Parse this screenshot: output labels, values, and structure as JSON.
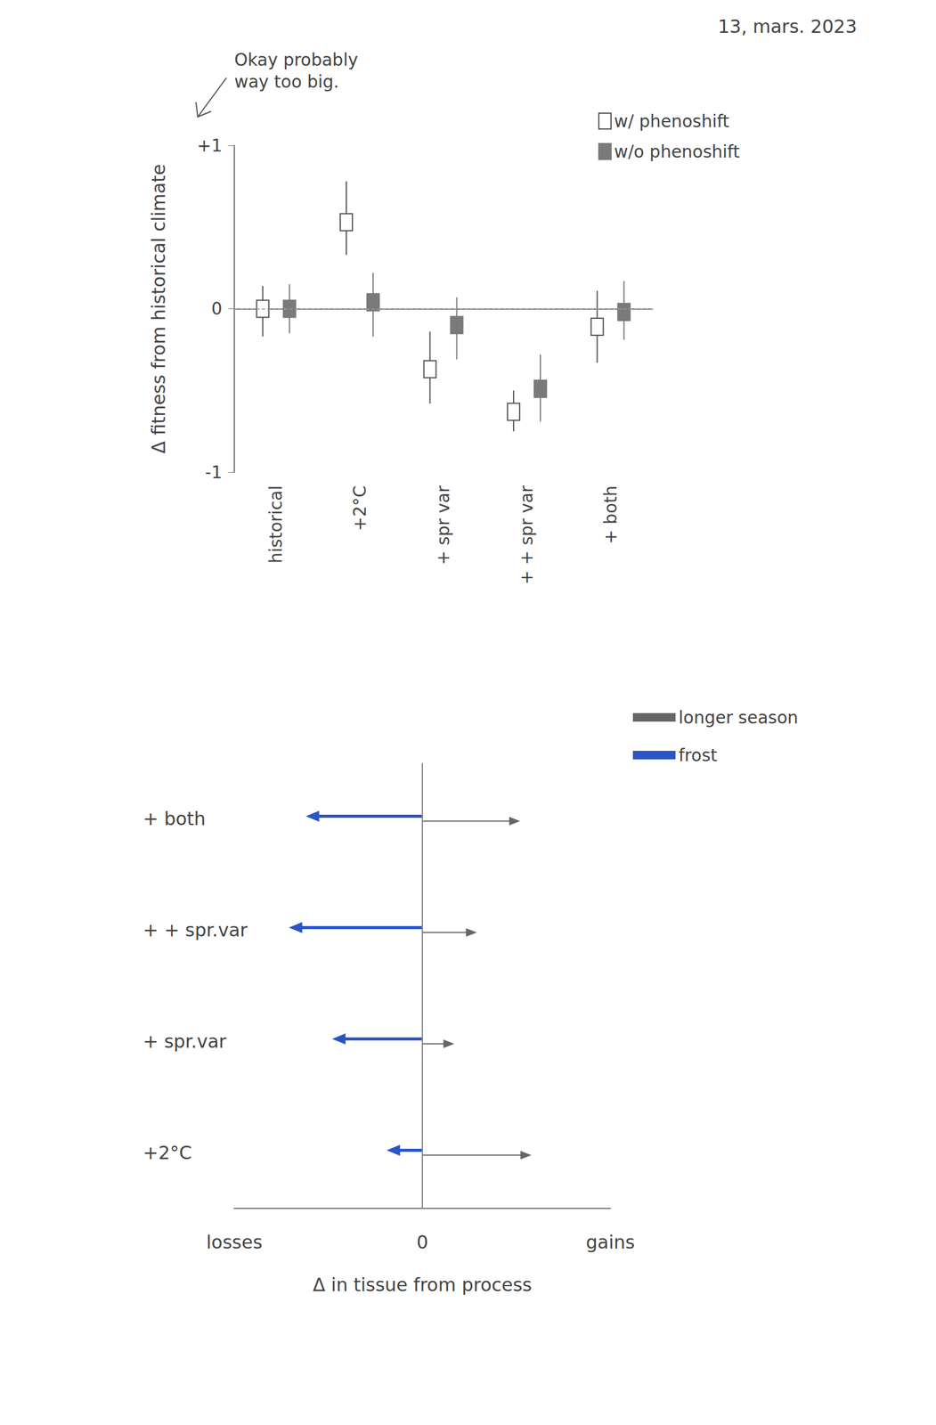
{
  "chart_data": [
    {
      "type": "errorbar",
      "annotations": [
        "13, mars. 2023",
        "Okay probably way too big."
      ],
      "y_label": "Δ fitness from historical climate",
      "categories": [
        "historical",
        "+2°C",
        "+ spr var",
        "+ + spr var",
        "+ both"
      ],
      "series": [
        {
          "name": "w/ phenoshift",
          "color": "#555555",
          "marker": "square-open",
          "values": [
            0,
            0.53,
            -0.37,
            -0.63,
            -0.11
          ],
          "low": [
            -0.17,
            0.33,
            -0.58,
            -0.75,
            -0.33
          ],
          "high": [
            0.14,
            0.78,
            -0.14,
            -0.5,
            0.11
          ]
        },
        {
          "name": "w/o phenoshift",
          "color": "#7a7a7a",
          "marker": "square",
          "values": [
            0,
            0.04,
            -0.1,
            -0.49,
            -0.02
          ],
          "low": [
            -0.15,
            -0.17,
            -0.31,
            -0.69,
            -0.19
          ],
          "high": [
            0.15,
            0.22,
            0.07,
            -0.28,
            0.17
          ]
        }
      ],
      "ylim": [
        -1,
        1
      ],
      "yticks": [
        -1,
        0,
        {
          "value": 1,
          "label": "+1"
        }
      ],
      "legend": "upper right",
      "grid": false
    },
    {
      "type": "arrow",
      "x_label": "Δ in tissue from process",
      "categories": [
        "+2°C",
        "+ spr.var",
        "+ + spr.var",
        "+ both"
      ],
      "series": [
        {
          "name": "longer season",
          "color": "#666666",
          "values": [
            0.58,
            0.17,
            0.29,
            0.52
          ]
        },
        {
          "name": "frost",
          "color": "#2a55c8",
          "values": [
            -0.19,
            -0.48,
            -0.71,
            -0.62
          ]
        }
      ],
      "xlim": [
        -1,
        1
      ],
      "xticks": [
        {
          "value": -1,
          "label": "losses"
        },
        0,
        {
          "value": 1,
          "label": "gains"
        }
      ],
      "legend": "upper right",
      "grid": false
    }
  ]
}
